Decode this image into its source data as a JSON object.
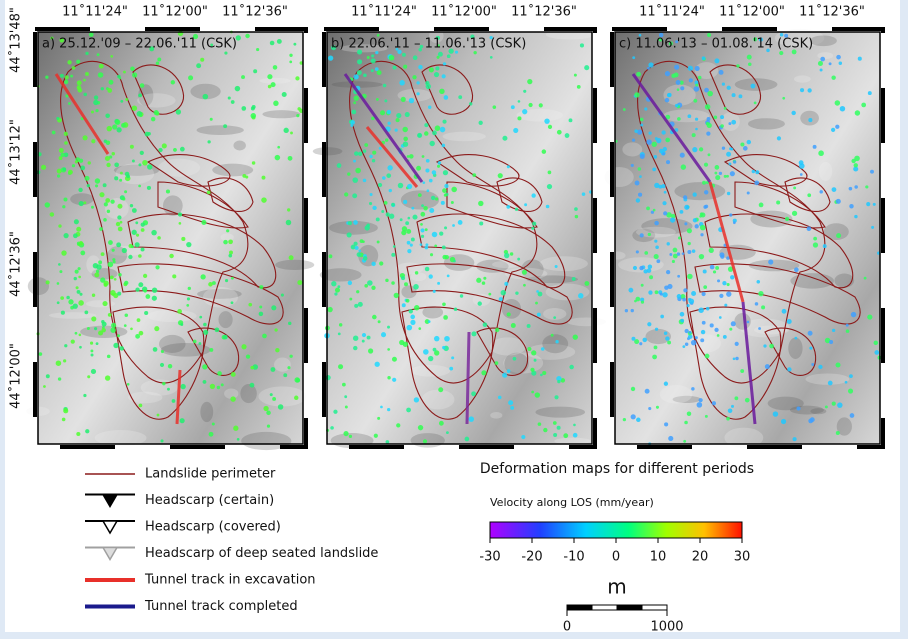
{
  "panels": [
    {
      "label": "a) 25.12.'09 – 22.06.'11 (CSK)"
    },
    {
      "label": "b) 22.06.'11 – 11.06.'13 (CSK)"
    },
    {
      "label": "c) 11.06.'13 – 01.08.'14 (CSK)"
    }
  ],
  "longitude_labels": [
    "11˚11'24\"",
    "11˚12'00\"",
    "11˚12'36\""
  ],
  "latitude_labels": [
    "44˚13'48\"",
    "44˚13'12\"",
    "44˚12'36\"",
    "44˚12'00\""
  ],
  "legend": {
    "items": [
      {
        "label": "Landslide perimeter",
        "color": "#8b1a1a"
      },
      {
        "label": "Headscarp (certain)",
        "color": "#000000"
      },
      {
        "label": "Headscarp (covered)",
        "color": "#000000"
      },
      {
        "label": "Headscarp of deep seated landslide",
        "color": "#a0a0a0"
      },
      {
        "label": "Tunnel track in excavation",
        "color": "#e8302a"
      },
      {
        "label": "Tunnel track completed",
        "color": "#1a1a8c"
      }
    ]
  },
  "colorbar": {
    "title": "Deformation maps for different periods",
    "label": "Velocity along LOS (mm/year)",
    "range": [
      -30,
      30
    ],
    "ticks": [
      -30,
      -20,
      -10,
      0,
      10,
      20,
      30
    ]
  },
  "scale": {
    "unit": "m",
    "range": [
      0,
      1000
    ],
    "ticks": [
      0,
      1000
    ]
  }
}
